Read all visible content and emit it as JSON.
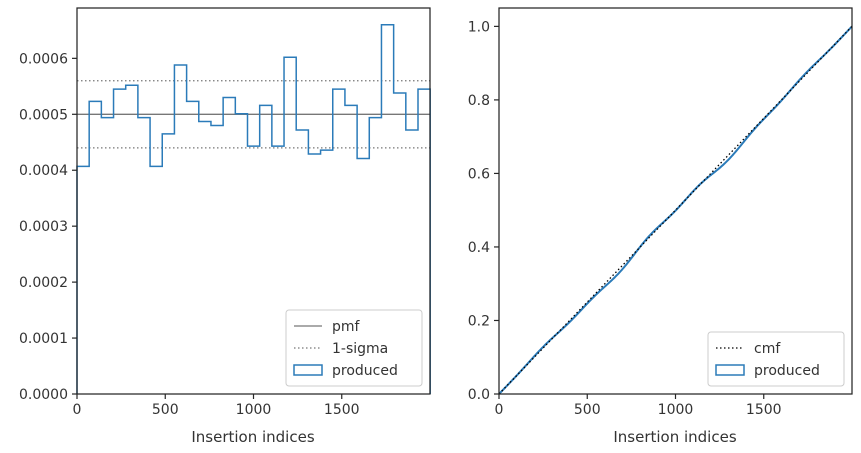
{
  "chart_data": [
    {
      "type": "line",
      "xlabel": "Insertion indices",
      "ylabel": "",
      "xlim": [
        0,
        2000
      ],
      "ylim": [
        0,
        0.00069
      ],
      "xticks": [
        0,
        500,
        1000,
        1500
      ],
      "xtick_labels": [
        "0",
        "500",
        "1000",
        "1500"
      ],
      "yticks": [
        0,
        0.0001,
        0.0002,
        0.0003,
        0.0004,
        0.0005,
        0.0006
      ],
      "ytick_labels": [
        "0.0000",
        "0.0001",
        "0.0002",
        "0.0003",
        "0.0004",
        "0.0005",
        "0.0006"
      ],
      "grid": false,
      "legend_position": "lower-right",
      "legend": [
        {
          "label": "pmf",
          "style": "solid-line",
          "color": "#777777"
        },
        {
          "label": "1-sigma",
          "style": "dotted-line",
          "color": "#777777"
        },
        {
          "label": "produced",
          "style": "step-patch",
          "color": "#2b7bb9"
        }
      ],
      "pmf_value": 0.0005,
      "sigma_bounds": [
        0.00044,
        0.00056
      ],
      "produced_step": {
        "bin_edges": [
          0,
          69,
          138,
          207,
          276,
          345,
          414,
          483,
          552,
          621,
          690,
          759,
          828,
          897,
          966,
          1035,
          1104,
          1173,
          1242,
          1311,
          1380,
          1449,
          1518,
          1587,
          1656,
          1725,
          1794,
          1863,
          1932,
          2001
        ],
        "values": [
          0.000407,
          0.000523,
          0.000494,
          0.000545,
          0.000552,
          0.000494,
          0.000407,
          0.000465,
          0.000588,
          0.000523,
          0.000487,
          0.00048,
          0.00053,
          0.000501,
          0.000443,
          0.000516,
          0.000443,
          0.000602,
          0.000472,
          0.000429,
          0.000436,
          0.000545,
          0.000516,
          0.000421,
          0.000494,
          0.00066,
          0.000538,
          0.000472,
          0.000545
        ]
      }
    },
    {
      "type": "line",
      "xlabel": "Insertion indices",
      "ylabel": "",
      "xlim": [
        0,
        2000
      ],
      "ylim": [
        0,
        1.05
      ],
      "xticks": [
        0,
        500,
        1000,
        1500
      ],
      "xtick_labels": [
        "0",
        "500",
        "1000",
        "1500"
      ],
      "yticks": [
        0,
        0.2,
        0.4,
        0.6,
        0.8,
        1.0
      ],
      "ytick_labels": [
        "0.0",
        "0.2",
        "0.4",
        "0.6",
        "0.8",
        "1.0"
      ],
      "grid": false,
      "legend_position": "lower-right",
      "legend": [
        {
          "label": "cmf",
          "style": "dotted-line",
          "color": "#000000"
        },
        {
          "label": "produced",
          "style": "step-patch",
          "color": "#2b7bb9"
        }
      ],
      "cmf_line": {
        "x": [
          0,
          2000
        ],
        "y": [
          0,
          1.0
        ]
      }
    }
  ]
}
